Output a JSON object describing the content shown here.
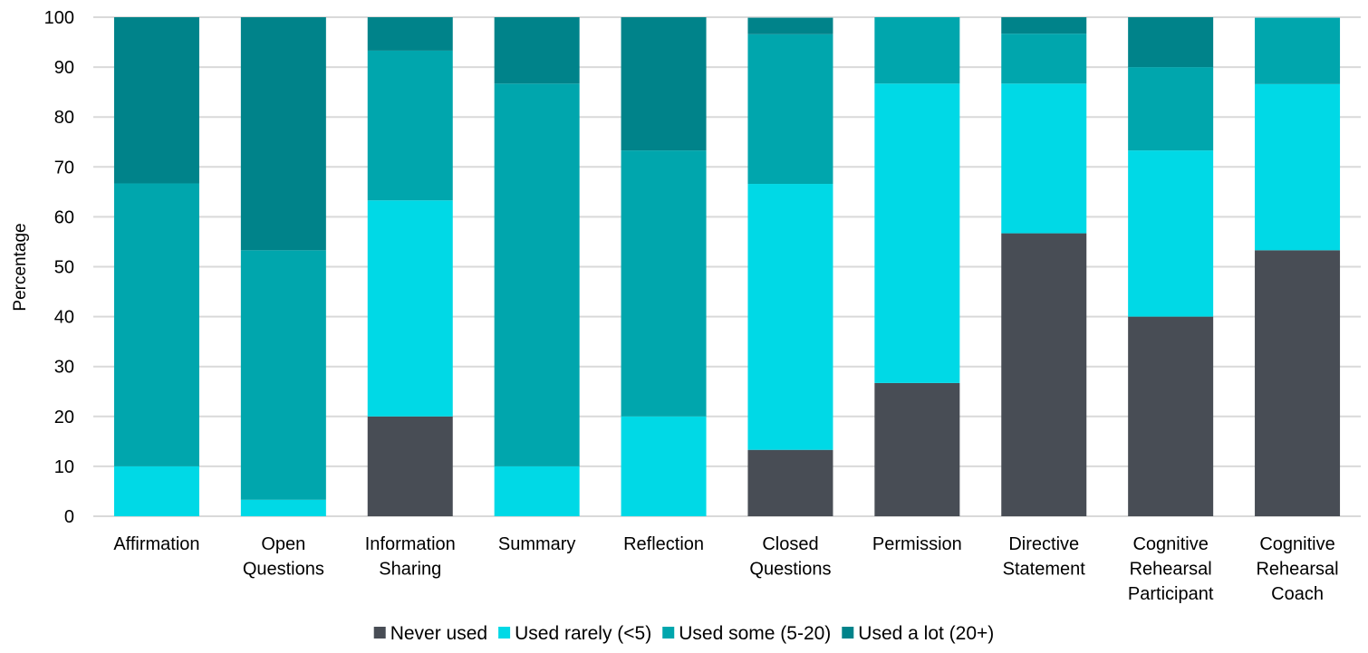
{
  "chart_data": {
    "type": "bar",
    "stacked": true,
    "title": "",
    "xlabel": "",
    "ylabel": "Percentage",
    "ylim": [
      0,
      100
    ],
    "yticks": [
      0,
      10,
      20,
      30,
      40,
      50,
      60,
      70,
      80,
      90,
      100
    ],
    "grid": true,
    "legend_position": "bottom",
    "categories": [
      [
        "Affirmation"
      ],
      [
        "Open",
        "Questions"
      ],
      [
        "Information",
        "Sharing"
      ],
      [
        "Summary"
      ],
      [
        "Reflection"
      ],
      [
        "Closed",
        "Questions"
      ],
      [
        "Permission"
      ],
      [
        "Directive",
        "Statement"
      ],
      [
        "Cognitive",
        "Rehearsal",
        "Participant"
      ],
      [
        "Cognitive",
        "Rehearsal",
        "Coach"
      ]
    ],
    "series": [
      {
        "name": "Never used",
        "color": "#484d55",
        "values": [
          0,
          0,
          20,
          0,
          0,
          13.3,
          26.7,
          56.7,
          40,
          53.3
        ]
      },
      {
        "name": "Used rarely (<5)",
        "color": "#00d9e6",
        "values": [
          10,
          3.3,
          43.3,
          10,
          20,
          53.3,
          60,
          30,
          33.3,
          33.3
        ]
      },
      {
        "name": "Used some (5-20)",
        "color": "#00a6ad",
        "values": [
          56.7,
          50,
          30,
          76.7,
          53.3,
          30,
          13.3,
          10,
          16.7,
          13.3
        ]
      },
      {
        "name": "Used a lot (20+)",
        "color": "#00838a",
        "values": [
          33.3,
          46.7,
          6.7,
          13.3,
          26.7,
          3.3,
          0,
          3.3,
          10,
          0
        ]
      }
    ]
  }
}
